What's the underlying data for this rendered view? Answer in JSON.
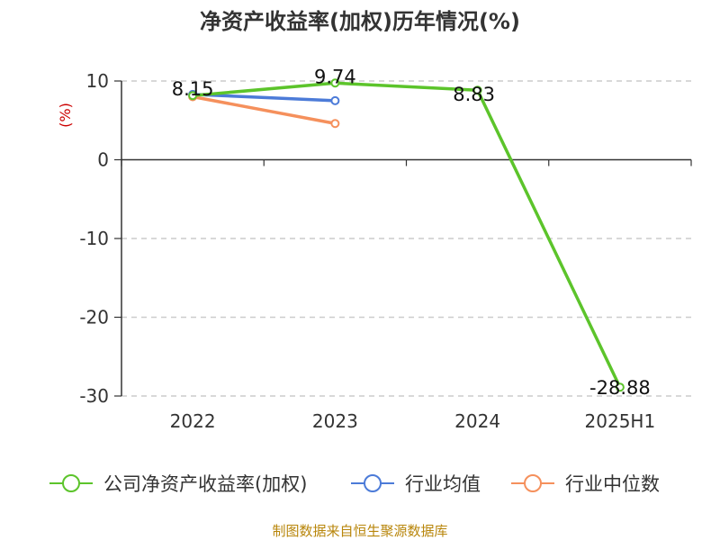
{
  "chart_data": {
    "type": "line",
    "title": "净资产收益率(加权)历年情况(%)",
    "ylabel": "(%)",
    "categories": [
      "2022",
      "2023",
      "2024",
      "2025H1"
    ],
    "ylim": [
      -30,
      10
    ],
    "yticks": [
      10,
      0,
      -10,
      -20,
      -30
    ],
    "grid": true,
    "legend_position": "bottom",
    "series": [
      {
        "name": "公司净资产收益率(加权)",
        "color": "#5cc42b",
        "values": [
          8.15,
          9.74,
          8.83,
          -28.88
        ],
        "labels": [
          "8.15",
          "9.74",
          "8.83",
          "-28.88"
        ]
      },
      {
        "name": "行业均值",
        "color": "#4c7bd8",
        "values": [
          8.3,
          7.5,
          null,
          null
        ]
      },
      {
        "name": "行业中位数",
        "color": "#f5905c",
        "values": [
          8.0,
          4.6,
          null,
          null
        ]
      }
    ]
  },
  "source": "制图数据来自恒生聚源数据库"
}
